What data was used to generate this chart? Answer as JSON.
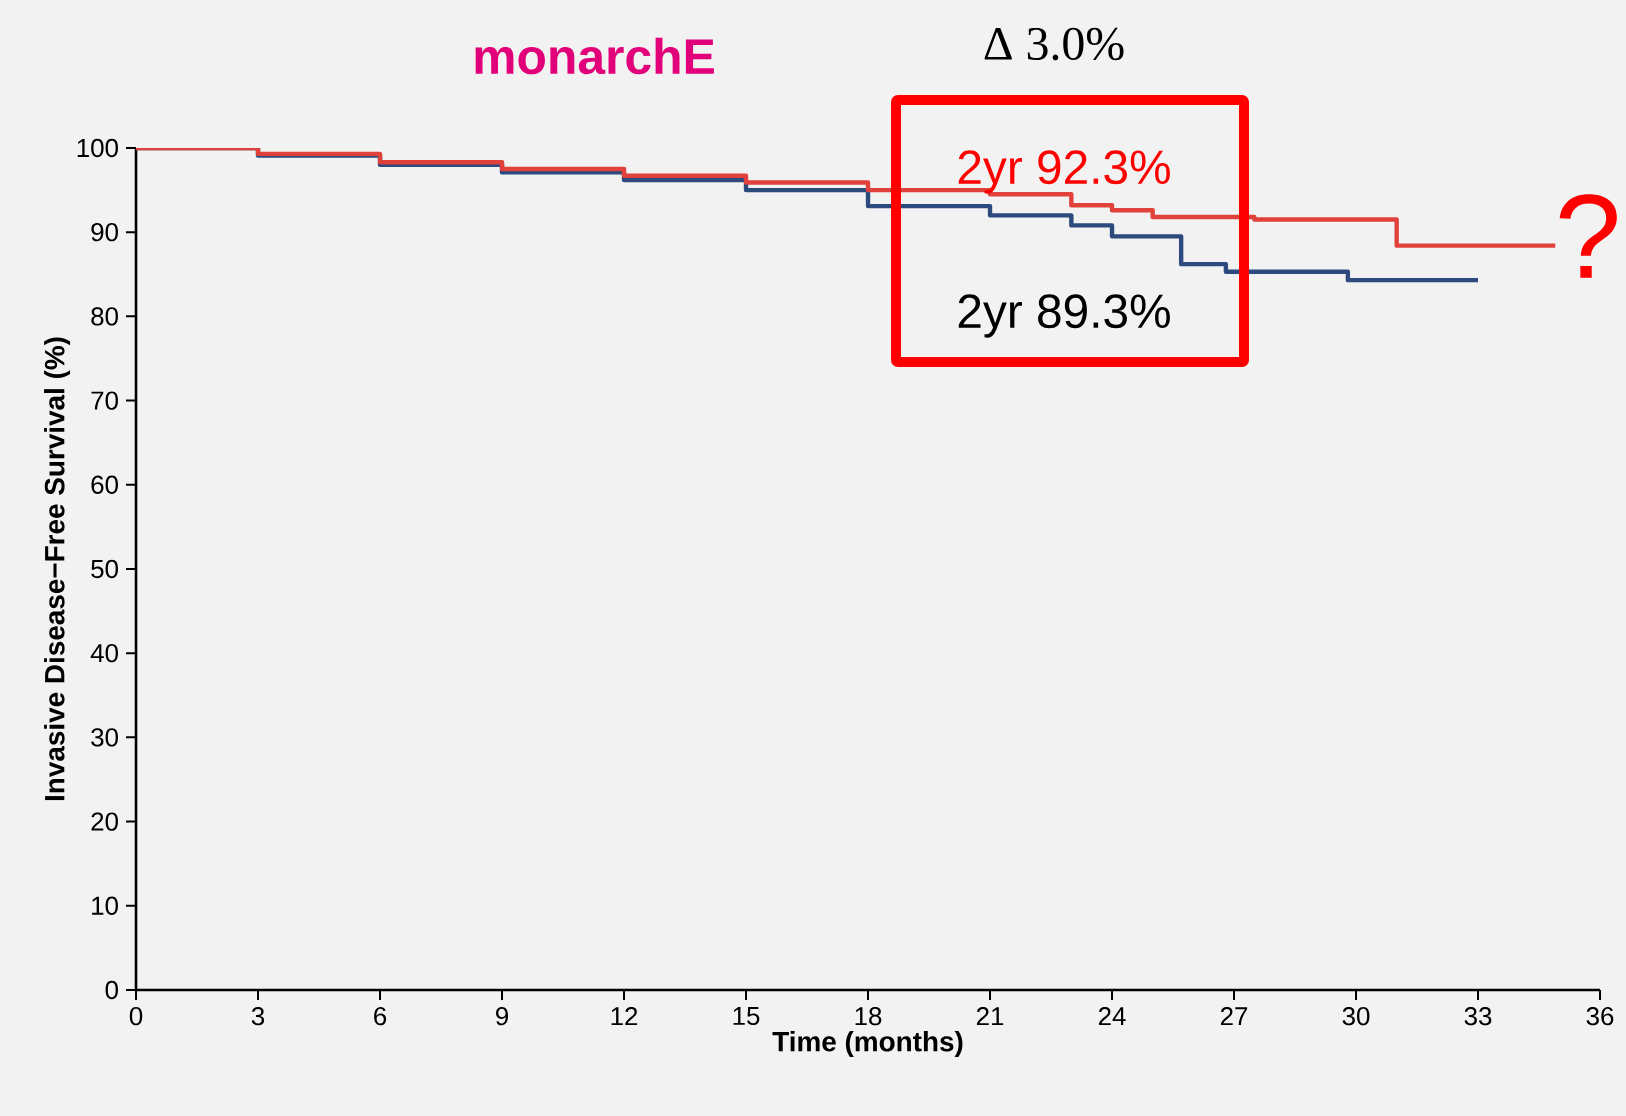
{
  "chart_data": {
    "type": "step",
    "title": "monarchE",
    "xlabel": "Time (months)",
    "ylabel": "Invasive Disease−Free Survival (%)",
    "annotations": [
      "Δ 3.0%",
      "2yr 92.3%",
      "2yr 89.3%",
      "?"
    ],
    "series": [
      {
        "color": "#2c4a7e",
        "x": [
          0,
          3,
          6,
          9,
          12,
          15,
          18,
          21,
          23,
          24,
          25.7,
          26.8,
          29.8,
          33
        ],
        "values": [
          100,
          99.1,
          98.0,
          97.1,
          96.2,
          95.0,
          93.1,
          92.0,
          90.8,
          89.5,
          86.2,
          85.3,
          84.3,
          84.3
        ]
      },
      {
        "color": "#e0413a",
        "x": [
          0,
          3,
          6,
          9,
          12,
          15,
          18,
          21,
          23,
          24,
          25,
          27.5,
          31,
          34.9
        ],
        "values": [
          100,
          99.3,
          98.3,
          97.5,
          96.7,
          95.9,
          95.0,
          94.5,
          93.2,
          92.6,
          91.8,
          91.5,
          88.4,
          88.4
        ]
      }
    ],
    "xlim": [
      0,
      36
    ],
    "xticks": [
      0,
      3,
      6,
      9,
      12,
      15,
      18,
      21,
      24,
      27,
      30,
      33,
      36
    ],
    "ylim": [
      0,
      100
    ],
    "yticks": [
      0,
      10,
      20,
      30,
      40,
      50,
      60,
      70,
      80,
      90,
      100
    ],
    "grid": false
  }
}
